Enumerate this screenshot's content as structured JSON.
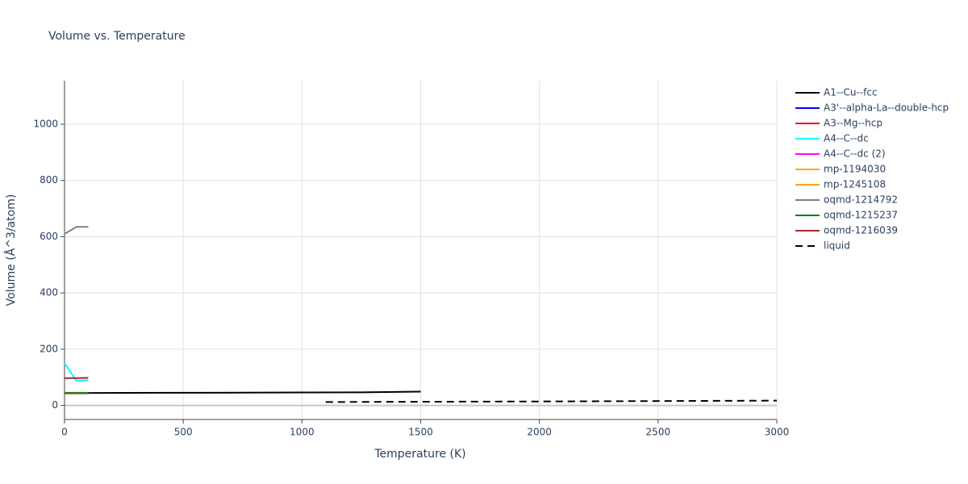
{
  "chart_data": {
    "type": "line",
    "title": "Volume vs. Temperature",
    "x_label": "Temperature (K)",
    "y_label": "Volume (Å^3/atom)",
    "xlim": [
      0,
      3000
    ],
    "ylim": [
      -50,
      1155
    ],
    "xticks": [
      0,
      500,
      1000,
      1500,
      2000,
      2500,
      3000
    ],
    "yticks": [
      0,
      200,
      400,
      600,
      800,
      1000
    ],
    "grid": true,
    "series": [
      {
        "name": "A1--Cu--fcc",
        "color": "#000000",
        "x": [
          0,
          250,
          500,
          750,
          1000,
          1250,
          1500
        ],
        "values": [
          44,
          44.5,
          45,
          45.5,
          46,
          46.5,
          49
        ]
      },
      {
        "name": "A3'--alpha-La--double-hcp",
        "color": "#0000ff",
        "x": [
          0,
          50,
          100
        ],
        "values": [
          43,
          43,
          43
        ]
      },
      {
        "name": "A3--Mg--hcp",
        "color": "#ff0000",
        "x": [
          0,
          50,
          100
        ],
        "values": [
          44,
          44,
          44
        ]
      },
      {
        "name": "A4--C--dc",
        "color": "#00ffff",
        "x": [
          0,
          50,
          100
        ],
        "values": [
          150,
          88,
          90
        ]
      },
      {
        "name": "A4--C--dc (2)",
        "color": "#ff00ff",
        "x": [
          0,
          50,
          100
        ],
        "values": [
          45,
          45,
          45
        ]
      },
      {
        "name": "mp-1194030",
        "color": "#ffa500",
        "x": [
          0,
          50,
          100
        ],
        "values": [
          44,
          44,
          44
        ]
      },
      {
        "name": "mp-1245108",
        "color": "#ffa500",
        "x": [
          0,
          50,
          100
        ],
        "values": [
          44,
          44,
          44
        ]
      },
      {
        "name": "oqmd-1214792",
        "color": "#808080",
        "x": [
          0,
          50,
          100
        ],
        "values": [
          610,
          635,
          635
        ]
      },
      {
        "name": "oqmd-1215237",
        "color": "#008000",
        "x": [
          0,
          50,
          100
        ],
        "values": [
          44,
          44,
          44
        ]
      },
      {
        "name": "oqmd-1216039",
        "color": "#a52a2a",
        "x": [
          0,
          50,
          100
        ],
        "values": [
          97,
          97,
          98
        ]
      },
      {
        "name": "liquid",
        "color": "#000000",
        "dash": "dash",
        "x": [
          1100,
          1500,
          2000,
          2500,
          3000
        ],
        "values": [
          12,
          13,
          14,
          15.5,
          17
        ]
      }
    ]
  }
}
